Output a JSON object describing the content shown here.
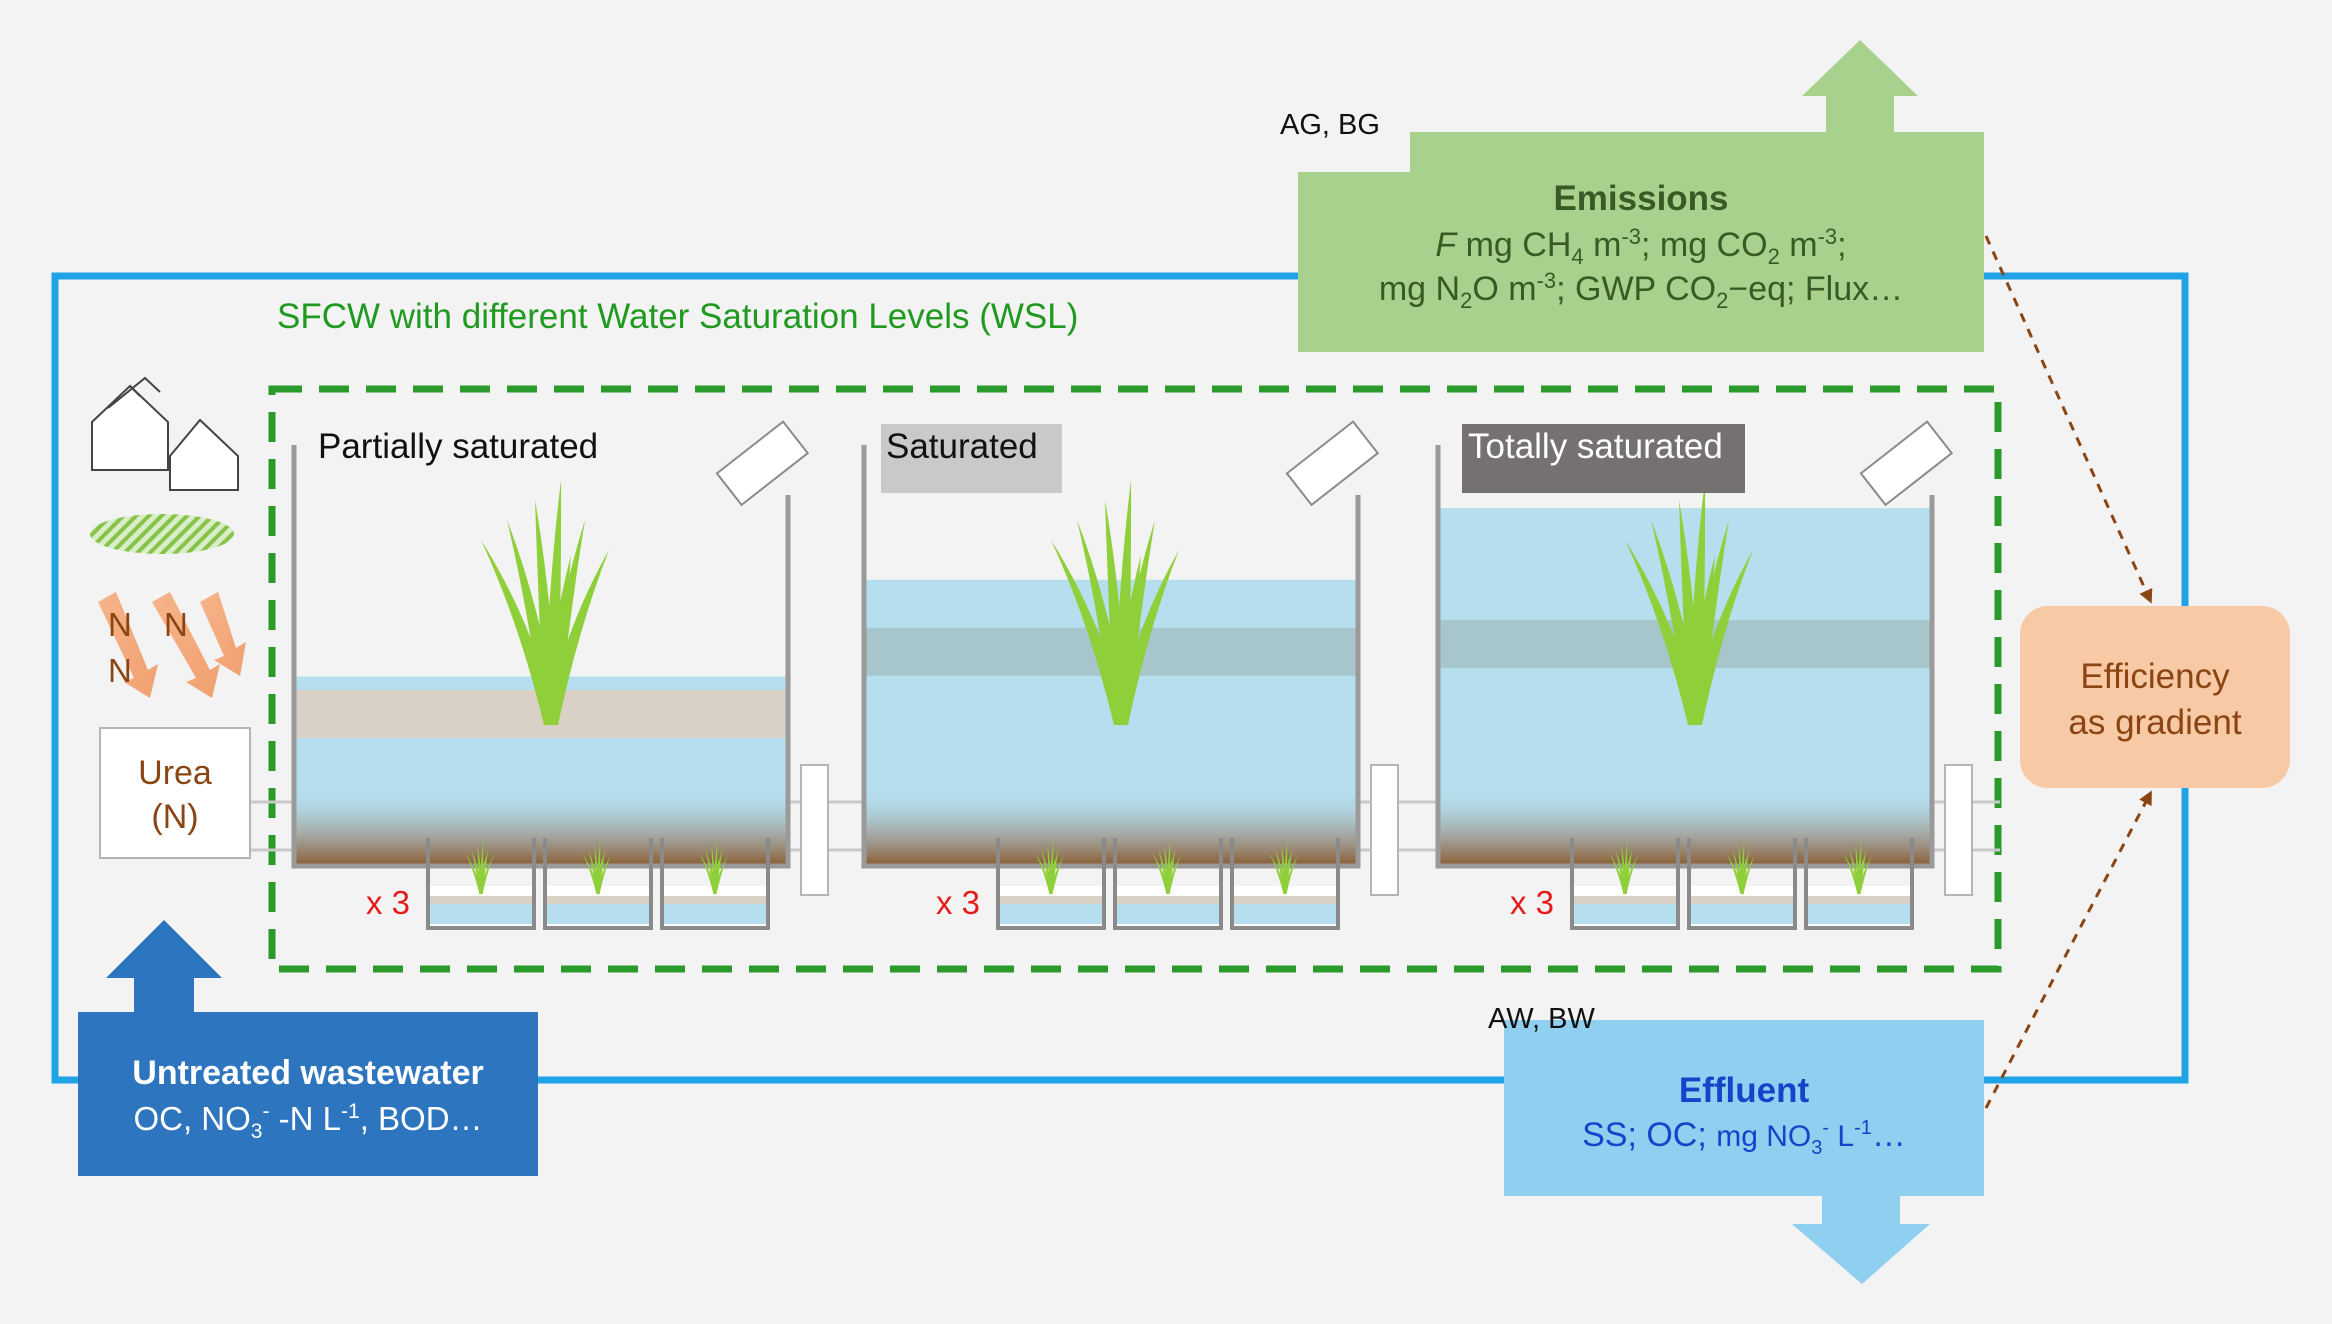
{
  "system": {
    "title": "SFCW with different Water Saturation Levels (WSL)"
  },
  "inputs": {
    "urea": [
      "Urea",
      "(N)"
    ],
    "n_letters": [
      "N",
      "N",
      "N"
    ]
  },
  "tanks": [
    {
      "label": "Partially saturated",
      "label_style": "plain",
      "water_level": 0.45,
      "replicates": "x 3"
    },
    {
      "label": "Saturated",
      "label_style": "light-gray",
      "water_level": 0.68,
      "replicates": "x 3"
    },
    {
      "label": "Totally saturated",
      "label_style": "dark-gray",
      "water_level": 0.85,
      "replicates": "x 3"
    }
  ],
  "untreated": {
    "title": "Untreated wastewater",
    "detail": {
      "t1": "OC, NO",
      "s1": "3",
      "s2": "-",
      "t2": " -N L",
      "s3": "-1",
      "t3": ", BOD…"
    }
  },
  "emissions": {
    "tag": "AG, BG",
    "title": "Emissions",
    "line1": {
      "f": "F",
      "t1": " mg CH",
      "s1": "4",
      "t2": " m",
      "s2": "-3",
      "t3": "; mg CO",
      "s3": "2",
      "t4": " m",
      "s4": "-3",
      "t5": ";"
    },
    "line2": {
      "t1": "mg N",
      "s1": "2",
      "t2": "O m",
      "s2": "-3",
      "t3": "; GWP CO",
      "s3": "2",
      "t4": "−eq; Flux…"
    }
  },
  "effluent": {
    "tag": "AW, BW",
    "title": "Effluent",
    "detail": {
      "t1": "SS; OC; ",
      "t2": "mg NO",
      "s1": "3",
      "s2": "-",
      "t3": " L",
      "s3": "-1",
      "t4": "…"
    }
  },
  "efficiency": {
    "lines": [
      "Efficiency",
      "as gradient"
    ]
  },
  "colors": {
    "system_border": "#1fa3e6",
    "dashed_border": "#2a9a2a",
    "title_green": "#1f9a1f",
    "emissions_fill": "#a8d18d",
    "emissions_text": "#3a5a25",
    "effluent_fill": "#8fcff0",
    "effluent_text": "#1643c9",
    "untreated_fill": "#2e75bf",
    "efficiency_fill": "#f7c9a4",
    "efficiency_text": "#8b4513",
    "water": "#b5dfef",
    "soil": "#d9d0c6",
    "replicate_text": "#e41b1b"
  }
}
